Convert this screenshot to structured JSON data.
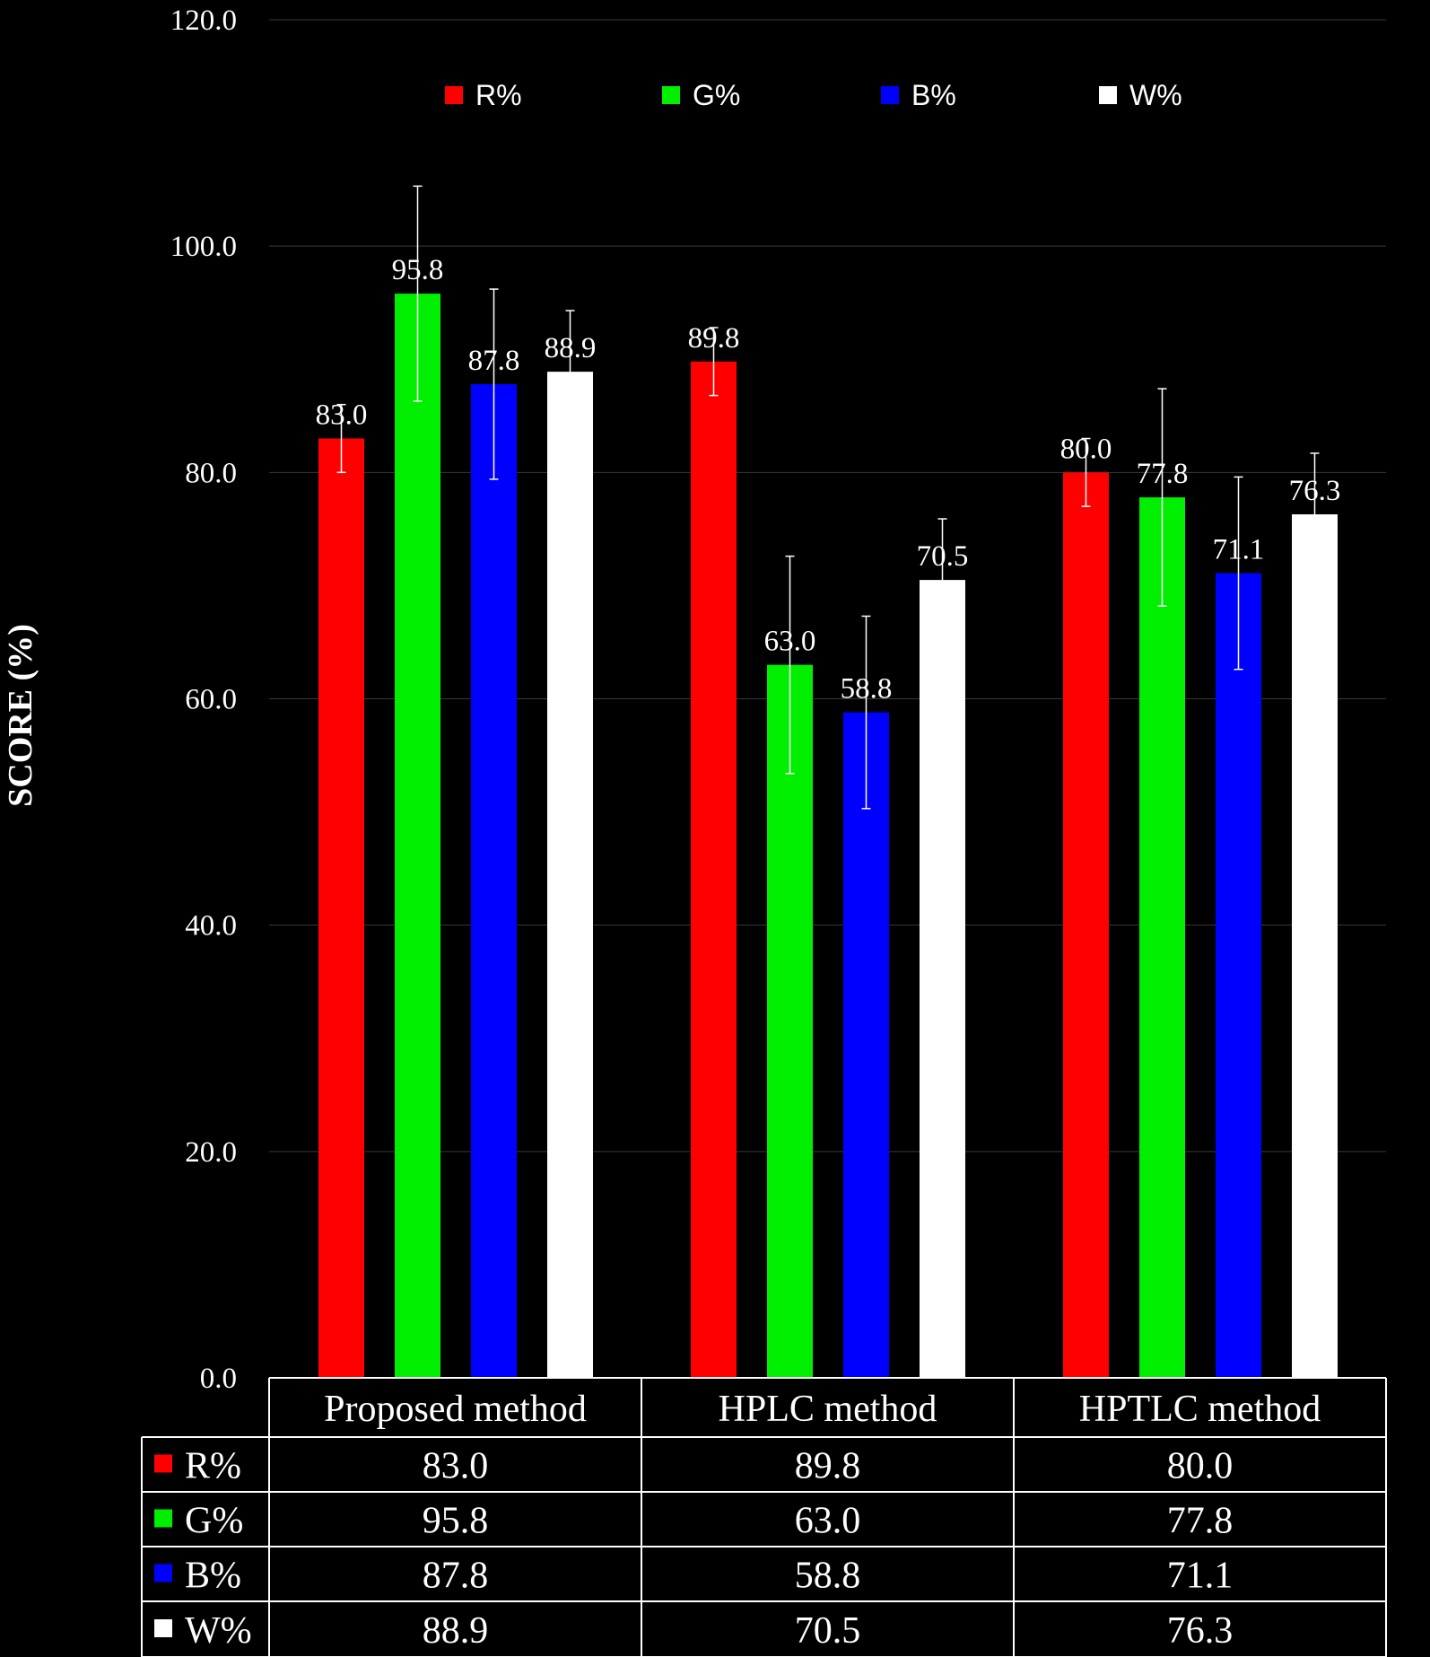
{
  "chart_data": {
    "type": "bar",
    "ylabel": "SCORE (%)",
    "xlabel": "",
    "ylim": [
      0,
      120
    ],
    "yticks": [
      "0.0",
      "20.0",
      "40.0",
      "60.0",
      "80.0",
      "100.0",
      "120.0"
    ],
    "grid": "horizontal",
    "legend_position": "top",
    "categories": [
      "Proposed method",
      "HPLC method",
      "HPTLC method"
    ],
    "series": [
      {
        "name": "R%",
        "color": "#ff0000",
        "values": [
          83.0,
          89.8,
          80.0
        ],
        "labels": [
          "83.0",
          "89.8",
          "80.0"
        ],
        "error": [
          3.0,
          3.0,
          3.0
        ]
      },
      {
        "name": "G%",
        "color": "#00ee00",
        "values": [
          95.8,
          63.0,
          77.8
        ],
        "labels": [
          "95.8",
          "63.0",
          "77.8"
        ],
        "error": [
          9.5,
          9.6,
          9.6
        ]
      },
      {
        "name": "B%",
        "color": "#0000ff",
        "values": [
          87.8,
          58.8,
          71.1
        ],
        "labels": [
          "87.8",
          "58.8",
          "71.1"
        ],
        "error": [
          8.4,
          8.5,
          8.5
        ]
      },
      {
        "name": "W%",
        "color": "#ffffff",
        "values": [
          88.9,
          70.5,
          76.3
        ],
        "labels": [
          "88.9",
          "70.5",
          "76.3"
        ],
        "error": [
          5.4,
          5.4,
          5.4
        ]
      }
    ],
    "table": {
      "header": [
        "Proposed method",
        "HPLC method",
        "HPTLC method"
      ],
      "rows": [
        {
          "name": "R%",
          "cells": [
            "83.0",
            "89.8",
            "80.0"
          ]
        },
        {
          "name": "G%",
          "cells": [
            "95.8",
            "63.0",
            "77.8"
          ]
        },
        {
          "name": "B%",
          "cells": [
            "87.8",
            "58.8",
            "71.1"
          ]
        },
        {
          "name": "W%",
          "cells": [
            "88.9",
            "70.5",
            "76.3"
          ]
        }
      ]
    }
  }
}
